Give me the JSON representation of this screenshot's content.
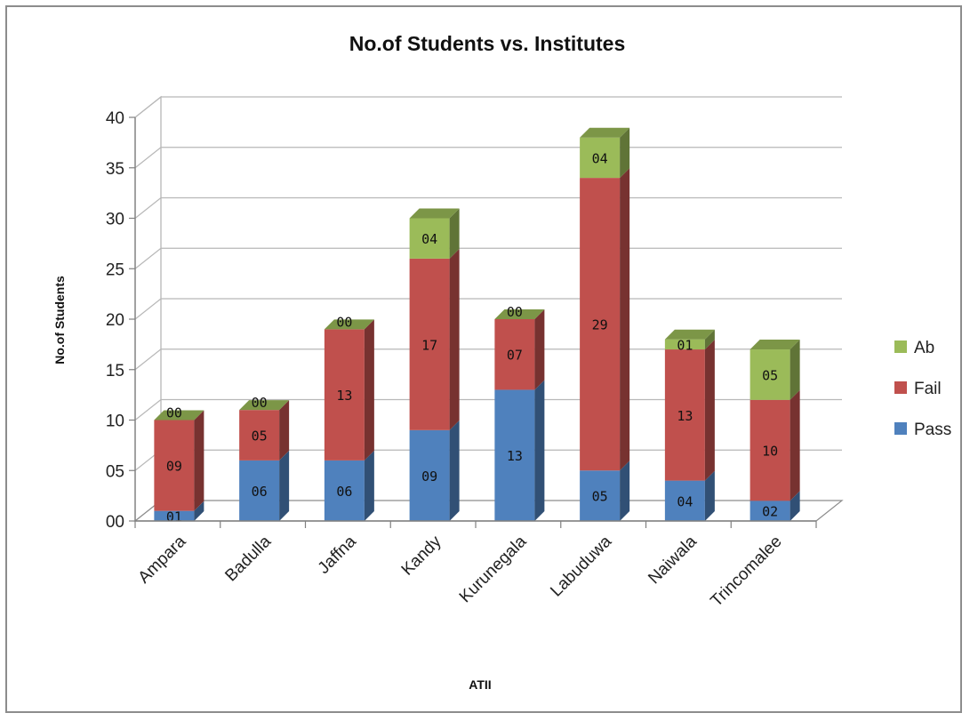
{
  "chart_data": {
    "type": "bar",
    "stacked": true,
    "title": "No.of Students vs. Institutes",
    "xlabel": "ATII",
    "ylabel": "No.of Students",
    "ylim": [
      0,
      40
    ],
    "ytick_labels": [
      "00",
      "05",
      "10",
      "15",
      "20",
      "25",
      "30",
      "35",
      "40"
    ],
    "categories": [
      "Ampara",
      "Badulla",
      "Jaffna",
      "Kandy",
      "Kurunegala",
      "Labuduwa",
      "Naiwala",
      "Trincomalee"
    ],
    "series": [
      {
        "name": "Pass",
        "color": "#4f81bd",
        "values": [
          1,
          6,
          6,
          9,
          13,
          5,
          4,
          2
        ],
        "labels": [
          "01",
          "06",
          "06",
          "09",
          "13",
          "05",
          "04",
          "02"
        ]
      },
      {
        "name": "Fail",
        "color": "#c0504d",
        "values": [
          9,
          5,
          13,
          17,
          7,
          29,
          13,
          10
        ],
        "labels": [
          "09",
          "05",
          "13",
          "17",
          "07",
          "29",
          "13",
          "10"
        ]
      },
      {
        "name": "Ab",
        "color": "#9bbb59",
        "values": [
          0,
          0,
          0,
          4,
          0,
          4,
          1,
          5
        ],
        "labels": [
          "00",
          "00",
          "00",
          "04",
          "00",
          "04",
          "01",
          "05"
        ]
      }
    ],
    "legend_position": "right",
    "legend_order": [
      "Ab",
      "Fail",
      "Pass"
    ],
    "grid": true
  }
}
